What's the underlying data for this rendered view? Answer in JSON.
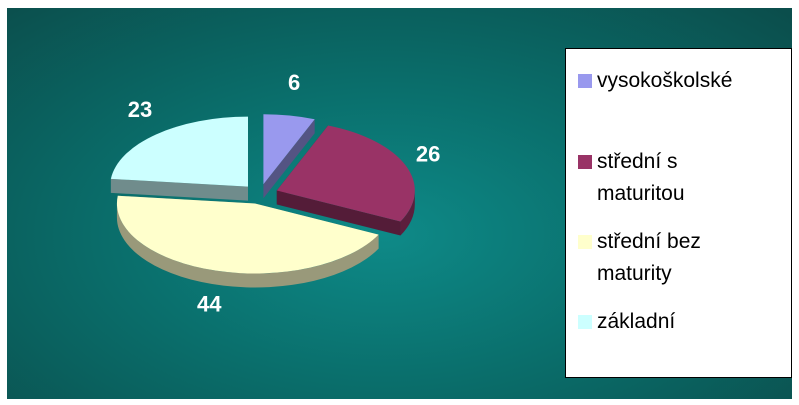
{
  "chart_data": {
    "type": "pie",
    "categories": [
      "vysokoškolské",
      "střední s maturitou",
      "střední bez maturity",
      "základní"
    ],
    "values": [
      6,
      26,
      44,
      23
    ],
    "data_labels": [
      "6",
      "26",
      "44",
      "23"
    ],
    "colors": [
      "#9999ee",
      "#993366",
      "#ffffcc",
      "#ccffff"
    ],
    "exploded": true,
    "legend_placement": "right",
    "title": ""
  },
  "legend": {
    "items": [
      {
        "line1": "vysokoškolské",
        "line2": ""
      },
      {
        "line1": "střední s",
        "line2": "maturitou"
      },
      {
        "line1": "střední bez",
        "line2": "maturity"
      },
      {
        "line1": "základní",
        "line2": ""
      }
    ]
  }
}
